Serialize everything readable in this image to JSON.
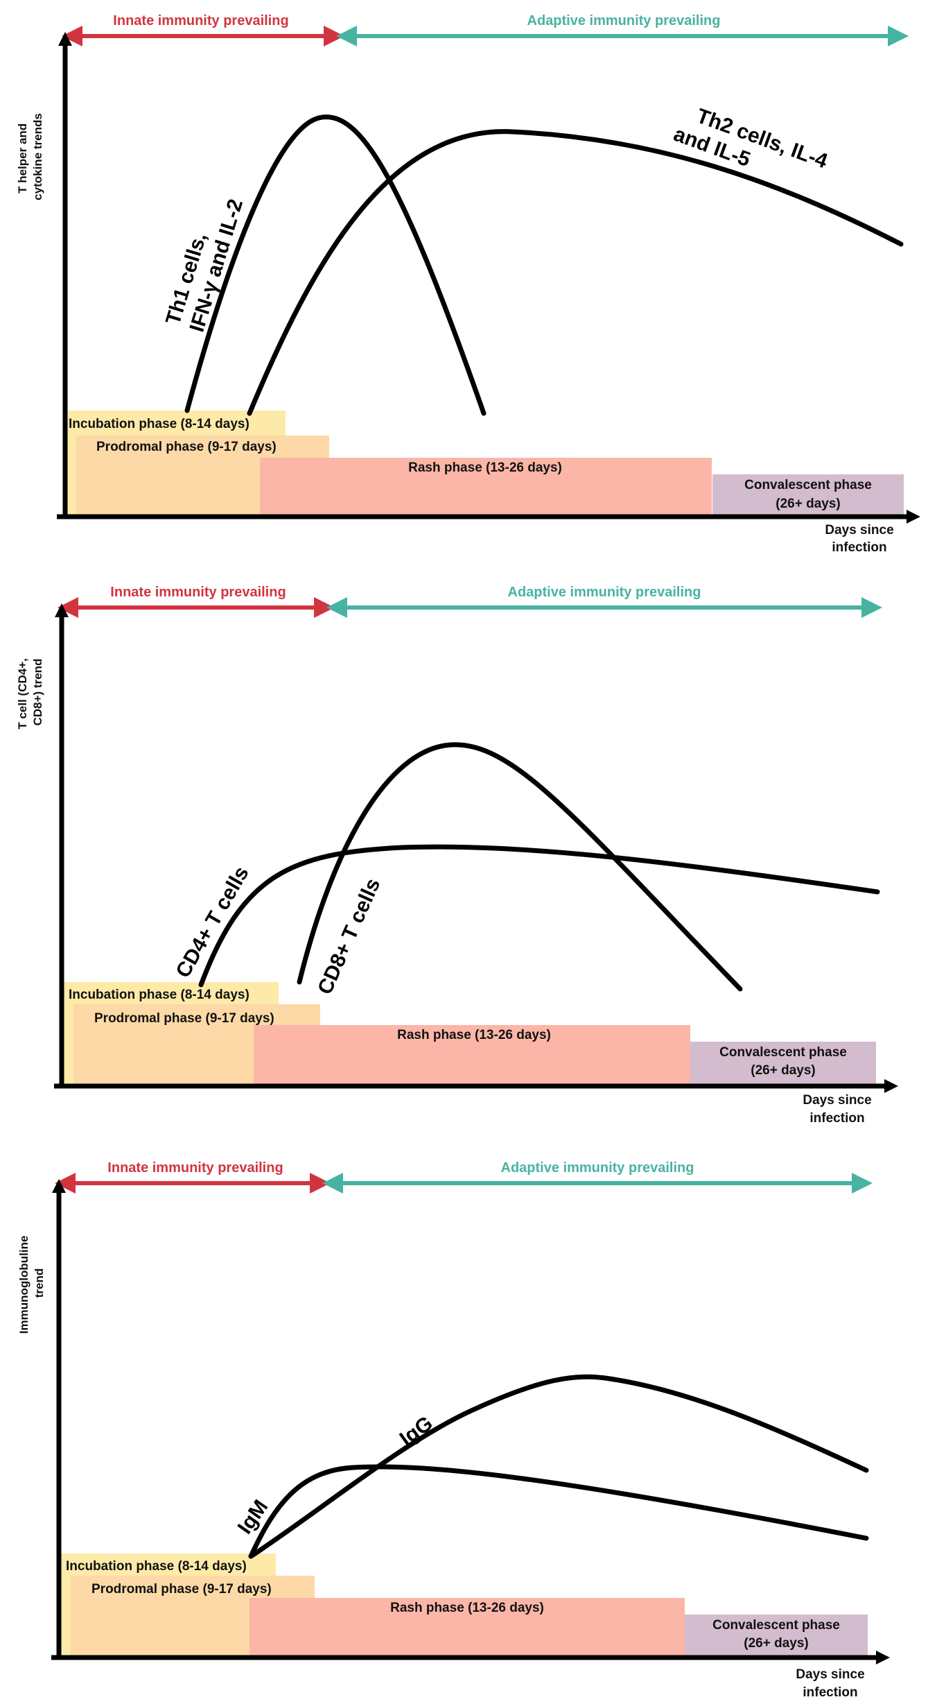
{
  "colors": {
    "innate": "#d2343f",
    "adaptive": "#48b3a2",
    "incubation": "#fdeaa8",
    "prodromal": "#fcd9a6",
    "rash": "#fbb6a8",
    "convalescent": "#d3bccd",
    "curve": "#000000"
  },
  "common": {
    "innate_label": "Innate immunity prevailing",
    "adaptive_label": "Adaptive immunity prevailing",
    "x_axis_label_line1": "Days since",
    "x_axis_label_line2": "infection",
    "phase_incubation": "Incubation phase (8-14 days)",
    "phase_prodromal": "Prodromal phase (9-17 days)",
    "phase_rash": "Rash phase (13-26 days)",
    "phase_convalescent_line1": "Convalescent phase",
    "phase_convalescent_line2": "(26+ days)"
  },
  "panel1": {
    "y_label_line1": "T helper and",
    "y_label_line2": "cytokine trends",
    "curve_a_line1": "Th1 cells,",
    "curve_a_line2": "IFN-γ and IL-2",
    "curve_b_line1": "Th2 cells, IL-4",
    "curve_b_line2": "and IL-5"
  },
  "panel2": {
    "y_label_line1": "T cell (CD4+,",
    "y_label_line2": "CD8+) trend",
    "curve_a": "CD4+ T cells",
    "curve_b": "CD8+ T cells"
  },
  "panel3": {
    "y_label_line1": "Immunoglobuline",
    "y_label_line2": "trend",
    "curve_a": "IgM",
    "curve_b": "IgG"
  }
}
